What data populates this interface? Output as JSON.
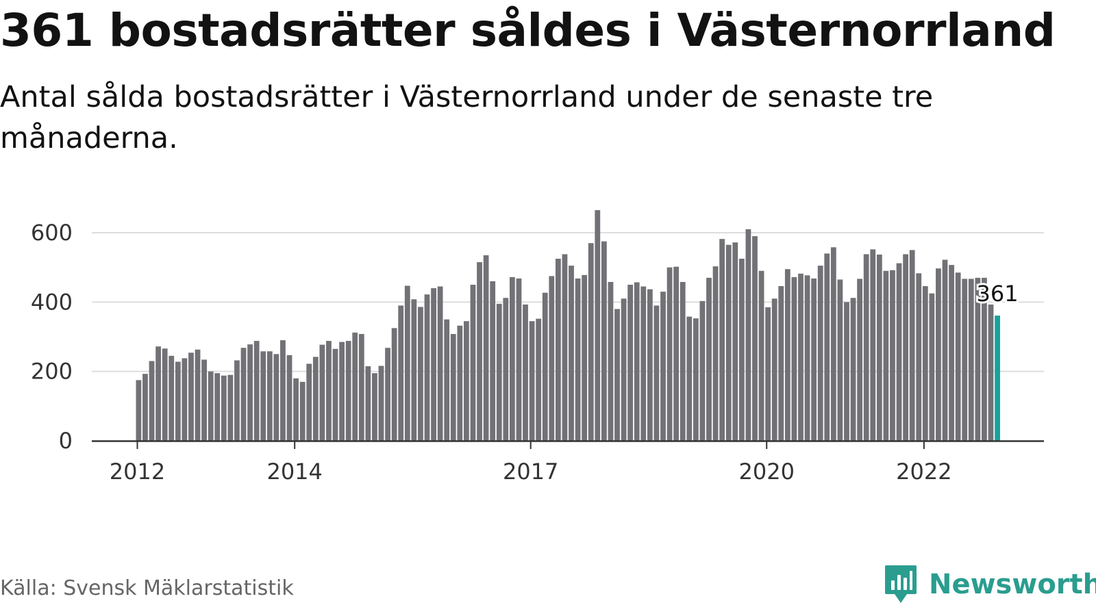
{
  "title": "361 bostadsrätter såldes i Västernorrland",
  "subtitle": "Antal sålda bostadsrätter i Västernorrland under de senaste tre månaderna.",
  "source": "Källa: Svensk Mäklarstatistik",
  "logo_text": "Newsworthy",
  "colors": {
    "bar": "#727176",
    "highlight": "#17a399",
    "grid": "#dddddd",
    "axis": "#333333",
    "logo": "#2a9d8f"
  },
  "chart_data": {
    "type": "bar",
    "title": "361 bostadsrätter såldes i Västernorrland",
    "subtitle": "Antal sålda bostadsrätter i Västernorrland under de senaste tre månaderna.",
    "xlabel": "",
    "ylabel": "",
    "ylim": [
      0,
      700
    ],
    "yticks": [
      0,
      200,
      400,
      600
    ],
    "xticks": [
      {
        "label": "2012",
        "index": 0
      },
      {
        "label": "2014",
        "index": 24
      },
      {
        "label": "2017",
        "index": 60
      },
      {
        "label": "2020",
        "index": 96
      },
      {
        "label": "2022",
        "index": 120
      }
    ],
    "grid": true,
    "start_period": "2012-01",
    "highlight_label": "361",
    "values": [
      175,
      193,
      230,
      272,
      266,
      245,
      228,
      238,
      254,
      263,
      234,
      200,
      195,
      188,
      190,
      232,
      268,
      278,
      288,
      258,
      258,
      250,
      290,
      247,
      180,
      170,
      222,
      242,
      277,
      288,
      265,
      285,
      288,
      312,
      308,
      215,
      195,
      216,
      268,
      325,
      390,
      447,
      408,
      386,
      422,
      440,
      445,
      350,
      308,
      332,
      345,
      450,
      515,
      535,
      460,
      395,
      412,
      472,
      468,
      393,
      345,
      352,
      427,
      475,
      525,
      538,
      505,
      468,
      478,
      570,
      665,
      575,
      458,
      380,
      410,
      450,
      457,
      445,
      437,
      390,
      430,
      500,
      502,
      458,
      358,
      353,
      403,
      470,
      503,
      582,
      565,
      572,
      525,
      610,
      590,
      490,
      385,
      410,
      446,
      495,
      472,
      482,
      477,
      468,
      505,
      540,
      558,
      465,
      400,
      412,
      467,
      538,
      552,
      537,
      490,
      492,
      512,
      538,
      550,
      483,
      446,
      425,
      497,
      522,
      507,
      485,
      467,
      467,
      470,
      470,
      393,
      361
    ]
  }
}
